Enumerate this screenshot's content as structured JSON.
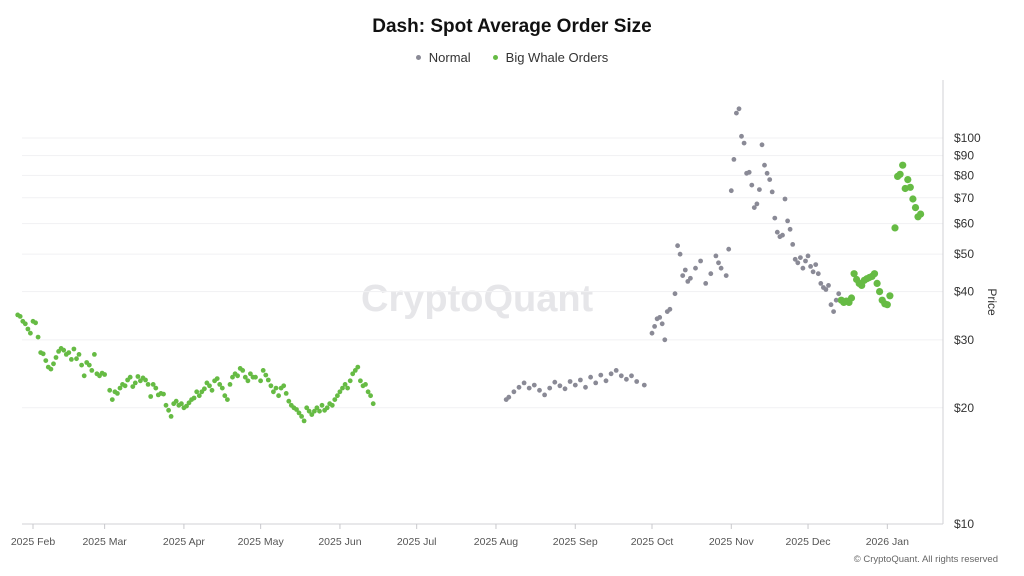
{
  "chart_data": {
    "type": "scatter",
    "title": "Dash: Spot Average Order Size",
    "ylabel": "Price",
    "xlabel": "",
    "y_scale": "log",
    "ylim": [
      10,
      130
    ],
    "xlim": [
      "2025-01-25",
      "2026-01-31"
    ],
    "y_ticks": [
      {
        "value": 10,
        "label": "$10"
      },
      {
        "value": 20,
        "label": "$20"
      },
      {
        "value": 30,
        "label": "$30"
      },
      {
        "value": 40,
        "label": "$40"
      },
      {
        "value": 50,
        "label": "$50"
      },
      {
        "value": 60,
        "label": "$60"
      },
      {
        "value": 70,
        "label": "$70"
      },
      {
        "value": 80,
        "label": "$80"
      },
      {
        "value": 90,
        "label": "$90"
      },
      {
        "value": 100,
        "label": "$100"
      }
    ],
    "x_ticks": [
      {
        "date": "2025-02-01",
        "label": "2025 Feb"
      },
      {
        "date": "2025-03-01",
        "label": "2025 Mar"
      },
      {
        "date": "2025-04-01",
        "label": "2025 Apr"
      },
      {
        "date": "2025-05-01",
        "label": "2025 May"
      },
      {
        "date": "2025-06-01",
        "label": "2025 Jun"
      },
      {
        "date": "2025-07-01",
        "label": "2025 Jul"
      },
      {
        "date": "2025-08-01",
        "label": "2025 Aug"
      },
      {
        "date": "2025-09-01",
        "label": "2025 Sep"
      },
      {
        "date": "2025-10-01",
        "label": "2025 Oct"
      },
      {
        "date": "2025-11-01",
        "label": "2025 Nov"
      },
      {
        "date": "2025-12-01",
        "label": "2025 Dec"
      },
      {
        "date": "2026-01-01",
        "label": "2026 Jan"
      }
    ],
    "grid": "horizontal",
    "legend_position": "top-center",
    "series": [
      {
        "name": "Normal",
        "color": "#8a8a96",
        "points": [
          [
            "2025-08-05",
            21.0
          ],
          [
            "2025-08-06",
            21.3
          ],
          [
            "2025-08-08",
            22.0
          ],
          [
            "2025-08-10",
            22.6
          ],
          [
            "2025-08-12",
            23.2
          ],
          [
            "2025-08-14",
            22.5
          ],
          [
            "2025-08-16",
            22.9
          ],
          [
            "2025-08-18",
            22.2
          ],
          [
            "2025-08-20",
            21.6
          ],
          [
            "2025-08-22",
            22.5
          ],
          [
            "2025-08-24",
            23.3
          ],
          [
            "2025-08-26",
            22.8
          ],
          [
            "2025-08-28",
            22.4
          ],
          [
            "2025-08-30",
            23.4
          ],
          [
            "2025-09-01",
            22.9
          ],
          [
            "2025-09-03",
            23.6
          ],
          [
            "2025-09-05",
            22.6
          ],
          [
            "2025-09-07",
            24.0
          ],
          [
            "2025-09-09",
            23.2
          ],
          [
            "2025-09-11",
            24.3
          ],
          [
            "2025-09-13",
            23.5
          ],
          [
            "2025-09-15",
            24.5
          ],
          [
            "2025-09-17",
            25.0
          ],
          [
            "2025-09-19",
            24.2
          ],
          [
            "2025-09-21",
            23.7
          ],
          [
            "2025-09-23",
            24.2
          ],
          [
            "2025-09-25",
            23.4
          ],
          [
            "2025-09-28",
            22.9
          ],
          [
            "2025-10-01",
            31.2
          ],
          [
            "2025-10-02",
            32.5
          ],
          [
            "2025-10-03",
            34.0
          ],
          [
            "2025-10-04",
            34.3
          ],
          [
            "2025-10-05",
            33.0
          ],
          [
            "2025-10-06",
            30.0
          ],
          [
            "2025-10-07",
            35.5
          ],
          [
            "2025-10-08",
            36.0
          ],
          [
            "2025-10-10",
            39.5
          ],
          [
            "2025-10-11",
            52.6
          ],
          [
            "2025-10-12",
            50.0
          ],
          [
            "2025-10-13",
            44.0
          ],
          [
            "2025-10-14",
            45.5
          ],
          [
            "2025-10-15",
            42.5
          ],
          [
            "2025-10-16",
            43.3
          ],
          [
            "2025-10-18",
            46.0
          ],
          [
            "2025-10-20",
            48.0
          ],
          [
            "2025-10-22",
            42.0
          ],
          [
            "2025-10-24",
            44.5
          ],
          [
            "2025-10-26",
            49.5
          ],
          [
            "2025-10-27",
            47.5
          ],
          [
            "2025-10-28",
            46.0
          ],
          [
            "2025-10-30",
            44.0
          ],
          [
            "2025-10-31",
            51.5
          ],
          [
            "2025-11-01",
            73.0
          ],
          [
            "2025-11-02",
            88.0
          ],
          [
            "2025-11-03",
            116.0
          ],
          [
            "2025-11-04",
            119.0
          ],
          [
            "2025-11-05",
            101.0
          ],
          [
            "2025-11-06",
            97.0
          ],
          [
            "2025-11-07",
            81.0
          ],
          [
            "2025-11-08",
            81.5
          ],
          [
            "2025-11-09",
            75.5
          ],
          [
            "2025-11-10",
            66.0
          ],
          [
            "2025-11-11",
            67.5
          ],
          [
            "2025-11-12",
            73.5
          ],
          [
            "2025-11-13",
            96.0
          ],
          [
            "2025-11-14",
            85.0
          ],
          [
            "2025-11-15",
            81.0
          ],
          [
            "2025-11-16",
            78.0
          ],
          [
            "2025-11-17",
            72.5
          ],
          [
            "2025-11-18",
            62.0
          ],
          [
            "2025-11-19",
            57.0
          ],
          [
            "2025-11-20",
            55.5
          ],
          [
            "2025-11-21",
            56.0
          ],
          [
            "2025-11-22",
            69.5
          ],
          [
            "2025-11-23",
            61.0
          ],
          [
            "2025-11-24",
            58.0
          ],
          [
            "2025-11-25",
            53.0
          ],
          [
            "2025-11-26",
            48.5
          ],
          [
            "2025-11-27",
            47.5
          ],
          [
            "2025-11-28",
            49.0
          ],
          [
            "2025-11-29",
            46.0
          ],
          [
            "2025-11-30",
            48.0
          ],
          [
            "2025-12-01",
            49.5
          ],
          [
            "2025-12-02",
            46.5
          ],
          [
            "2025-12-03",
            45.0
          ],
          [
            "2025-12-04",
            47.0
          ],
          [
            "2025-12-05",
            44.5
          ],
          [
            "2025-12-06",
            42.0
          ],
          [
            "2025-12-07",
            41.0
          ],
          [
            "2025-12-08",
            40.5
          ],
          [
            "2025-12-09",
            41.5
          ],
          [
            "2025-12-10",
            37.0
          ],
          [
            "2025-12-11",
            35.5
          ],
          [
            "2025-12-12",
            38.0
          ],
          [
            "2025-12-13",
            39.5
          ]
        ]
      },
      {
        "name": "Big Whale Orders",
        "color": "#66bb44",
        "points": [
          [
            "2025-01-26",
            34.8
          ],
          [
            "2025-01-27",
            34.5
          ],
          [
            "2025-01-28",
            33.5
          ],
          [
            "2025-01-29",
            33.0
          ],
          [
            "2025-01-30",
            32.0
          ],
          [
            "2025-01-31",
            31.2
          ],
          [
            "2025-02-01",
            33.5
          ],
          [
            "2025-02-02",
            33.2
          ],
          [
            "2025-02-03",
            30.5
          ],
          [
            "2025-02-04",
            27.8
          ],
          [
            "2025-02-05",
            27.6
          ],
          [
            "2025-02-06",
            26.5
          ],
          [
            "2025-02-07",
            25.5
          ],
          [
            "2025-02-08",
            25.2
          ],
          [
            "2025-02-09",
            26.0
          ],
          [
            "2025-02-10",
            27.0
          ],
          [
            "2025-02-11",
            28.0
          ],
          [
            "2025-02-12",
            28.5
          ],
          [
            "2025-02-13",
            28.2
          ],
          [
            "2025-02-14",
            27.5
          ],
          [
            "2025-02-15",
            27.8
          ],
          [
            "2025-02-16",
            26.7
          ],
          [
            "2025-02-17",
            28.4
          ],
          [
            "2025-02-18",
            26.8
          ],
          [
            "2025-02-19",
            27.5
          ],
          [
            "2025-02-20",
            25.8
          ],
          [
            "2025-02-21",
            24.2
          ],
          [
            "2025-02-22",
            26.2
          ],
          [
            "2025-02-23",
            25.8
          ],
          [
            "2025-02-24",
            25.0
          ],
          [
            "2025-02-25",
            27.5
          ],
          [
            "2025-02-26",
            24.5
          ],
          [
            "2025-02-27",
            24.2
          ],
          [
            "2025-02-28",
            24.6
          ],
          [
            "2025-03-01",
            24.4
          ],
          [
            "2025-03-03",
            22.2
          ],
          [
            "2025-03-04",
            21.0
          ],
          [
            "2025-03-05",
            22.0
          ],
          [
            "2025-03-06",
            21.8
          ],
          [
            "2025-03-07",
            22.5
          ],
          [
            "2025-03-08",
            23.0
          ],
          [
            "2025-03-09",
            22.8
          ],
          [
            "2025-03-10",
            23.6
          ],
          [
            "2025-03-11",
            24.0
          ],
          [
            "2025-03-12",
            22.7
          ],
          [
            "2025-03-13",
            23.2
          ],
          [
            "2025-03-14",
            24.1
          ],
          [
            "2025-03-15",
            23.5
          ],
          [
            "2025-03-16",
            23.9
          ],
          [
            "2025-03-17",
            23.6
          ],
          [
            "2025-03-18",
            23.0
          ],
          [
            "2025-03-19",
            21.4
          ],
          [
            "2025-03-20",
            23.0
          ],
          [
            "2025-03-21",
            22.5
          ],
          [
            "2025-03-22",
            21.6
          ],
          [
            "2025-03-23",
            21.8
          ],
          [
            "2025-03-24",
            21.7
          ],
          [
            "2025-03-25",
            20.3
          ],
          [
            "2025-03-26",
            19.7
          ],
          [
            "2025-03-27",
            19.0
          ],
          [
            "2025-03-28",
            20.5
          ],
          [
            "2025-03-29",
            20.8
          ],
          [
            "2025-03-30",
            20.3
          ],
          [
            "2025-03-31",
            20.5
          ],
          [
            "2025-04-01",
            20.0
          ],
          [
            "2025-04-02",
            20.2
          ],
          [
            "2025-04-03",
            20.6
          ],
          [
            "2025-04-04",
            21.0
          ],
          [
            "2025-04-05",
            21.2
          ],
          [
            "2025-04-06",
            22.0
          ],
          [
            "2025-04-07",
            21.5
          ],
          [
            "2025-04-08",
            22.0
          ],
          [
            "2025-04-09",
            22.4
          ],
          [
            "2025-04-10",
            23.2
          ],
          [
            "2025-04-11",
            22.8
          ],
          [
            "2025-04-12",
            22.2
          ],
          [
            "2025-04-13",
            23.5
          ],
          [
            "2025-04-14",
            23.8
          ],
          [
            "2025-04-15",
            23.0
          ],
          [
            "2025-04-16",
            22.5
          ],
          [
            "2025-04-17",
            21.5
          ],
          [
            "2025-04-18",
            21.0
          ],
          [
            "2025-04-19",
            23.0
          ],
          [
            "2025-04-20",
            24.0
          ],
          [
            "2025-04-21",
            24.5
          ],
          [
            "2025-04-22",
            24.2
          ],
          [
            "2025-04-23",
            25.3
          ],
          [
            "2025-04-24",
            25.0
          ],
          [
            "2025-04-25",
            24.0
          ],
          [
            "2025-04-26",
            23.5
          ],
          [
            "2025-04-27",
            24.5
          ],
          [
            "2025-04-28",
            24.0
          ],
          [
            "2025-04-29",
            24.0
          ],
          [
            "2025-05-01",
            23.5
          ],
          [
            "2025-05-02",
            25.0
          ],
          [
            "2025-05-03",
            24.3
          ],
          [
            "2025-05-04",
            23.6
          ],
          [
            "2025-05-05",
            22.8
          ],
          [
            "2025-05-06",
            22.0
          ],
          [
            "2025-05-07",
            22.5
          ],
          [
            "2025-05-08",
            21.5
          ],
          [
            "2025-05-09",
            22.5
          ],
          [
            "2025-05-10",
            22.8
          ],
          [
            "2025-05-11",
            21.8
          ],
          [
            "2025-05-12",
            20.8
          ],
          [
            "2025-05-13",
            20.3
          ],
          [
            "2025-05-14",
            20.0
          ],
          [
            "2025-05-15",
            19.8
          ],
          [
            "2025-05-16",
            19.4
          ],
          [
            "2025-05-17",
            19.0
          ],
          [
            "2025-05-18",
            18.5
          ],
          [
            "2025-05-19",
            20.0
          ],
          [
            "2025-05-20",
            19.6
          ],
          [
            "2025-05-21",
            19.2
          ],
          [
            "2025-05-22",
            19.6
          ],
          [
            "2025-05-23",
            20.0
          ],
          [
            "2025-05-24",
            19.6
          ],
          [
            "2025-05-25",
            20.3
          ],
          [
            "2025-05-26",
            19.7
          ],
          [
            "2025-05-27",
            20.0
          ],
          [
            "2025-05-28",
            20.5
          ],
          [
            "2025-05-29",
            20.3
          ],
          [
            "2025-05-30",
            21.0
          ],
          [
            "2025-05-31",
            21.5
          ],
          [
            "2025-06-01",
            22.0
          ],
          [
            "2025-06-02",
            22.5
          ],
          [
            "2025-06-03",
            23.0
          ],
          [
            "2025-06-04",
            22.5
          ],
          [
            "2025-06-05",
            23.5
          ],
          [
            "2025-06-06",
            24.5
          ],
          [
            "2025-06-07",
            25.0
          ],
          [
            "2025-06-08",
            25.5
          ],
          [
            "2025-06-09",
            23.5
          ],
          [
            "2025-06-10",
            22.8
          ],
          [
            "2025-06-11",
            23.0
          ],
          [
            "2025-06-12",
            22.0
          ],
          [
            "2025-06-13",
            21.5
          ],
          [
            "2025-06-14",
            20.5
          ]
        ]
      }
    ]
  }
}
